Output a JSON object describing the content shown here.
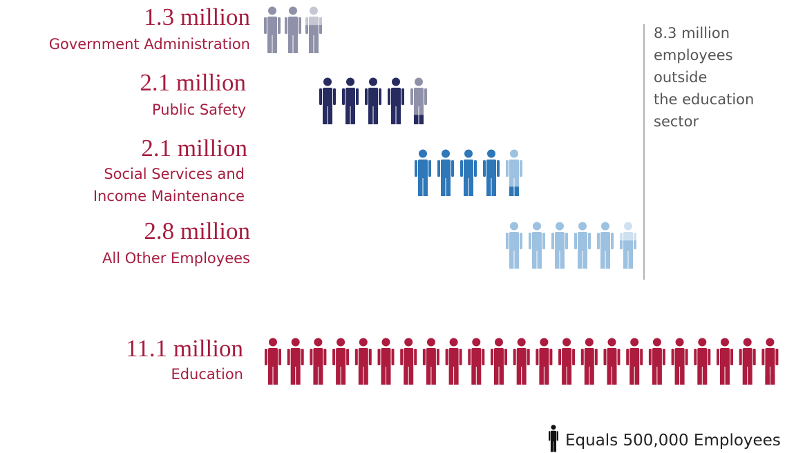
{
  "chart_data": {
    "type": "pictograph",
    "categories": [
      "Government Administration",
      "Public Safety",
      [
        "Social Services and",
        "Income Maintenance"
      ],
      "All Other Employees",
      "Education"
    ],
    "values": [
      1300000,
      2100000,
      2100000,
      2800000,
      11100000
    ],
    "value_labels": [
      "1.3 million",
      "2.1 million",
      "2.1 million",
      "2.8 million",
      "11.1 million"
    ],
    "colors": [
      "#8f91a8",
      "#272b60",
      "#2e77b9",
      "#9dc1e1",
      "#ad1c3e"
    ],
    "partial_colors": [
      "#c6c7d4",
      "#8f91a8",
      "#9dc1e1",
      "#cfe0ef",
      "#ad1c3e"
    ],
    "annotation": [
      "8.3 million",
      "employees",
      "outside",
      "the education",
      "sector"
    ],
    "legend": {
      "value": 500000,
      "label": "Equals 500,000 Employees",
      "color": "#111111"
    }
  }
}
